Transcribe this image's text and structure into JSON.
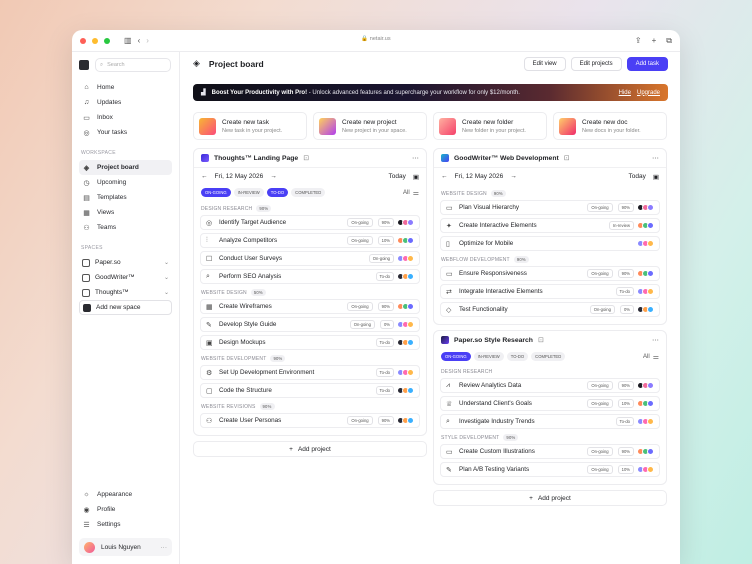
{
  "browser": {
    "url": "netair.us"
  },
  "sidebar": {
    "search_placeholder": "Search",
    "nav": [
      {
        "label": "Home",
        "icon": "home-icon"
      },
      {
        "label": "Updates",
        "icon": "bell-icon"
      },
      {
        "label": "Inbox",
        "icon": "inbox-icon"
      },
      {
        "label": "Your tasks",
        "icon": "check-circle-icon"
      }
    ],
    "workspace_heading": "WORKSPACE",
    "workspace": [
      {
        "label": "Project board",
        "icon": "layers-icon"
      },
      {
        "label": "Upcoming",
        "icon": "clock-icon"
      },
      {
        "label": "Templates",
        "icon": "template-icon"
      },
      {
        "label": "Views",
        "icon": "grid-icon"
      },
      {
        "label": "Teams",
        "icon": "users-icon"
      }
    ],
    "spaces_heading": "SPACES",
    "spaces": [
      {
        "label": "Paper.so"
      },
      {
        "label": "GoodWriter™"
      },
      {
        "label": "Thoughts™"
      }
    ],
    "add_space": "Add new space",
    "bottom": [
      {
        "label": "Appearance",
        "icon": "sun-icon"
      },
      {
        "label": "Profile",
        "icon": "user-icon"
      },
      {
        "label": "Settings",
        "icon": "sliders-icon"
      }
    ],
    "user_name": "Louis Nguyen"
  },
  "header": {
    "title": "Project board",
    "edit_view": "Edit view",
    "edit_projects": "Edit projects",
    "add_task": "Add task"
  },
  "promo": {
    "bold": "Boost Your Productivity with Pro!",
    "text": "- Unlock advanced features and supercharge your workflow for only $12/month.",
    "hide": "Hide",
    "upgrade": "Upgrade"
  },
  "quick_actions": [
    {
      "title": "Create new task",
      "sub": "New task in your project.",
      "grad": "linear-gradient(135deg,#f7b733,#fc4a7a)"
    },
    {
      "title": "Create new project",
      "sub": "New project in your space.",
      "grad": "linear-gradient(135deg,#ffd25a,#b13cf0)"
    },
    {
      "title": "Create new folder",
      "sub": "New folder in your project.",
      "grad": "linear-gradient(135deg,#ffb1a0,#f5406a)"
    },
    {
      "title": "Create new doc",
      "sub": "New docs in your folder.",
      "grad": "linear-gradient(135deg,#ffcf6a,#f02a6a)"
    }
  ],
  "left_card": {
    "title": "Thoughts™ Landing Page",
    "date": "Fri, 12 May 2026",
    "today": "Today",
    "filters": [
      "ON-GOING",
      "IN-REVIEW",
      "TO-DO",
      "COMPLETED"
    ],
    "all": "All",
    "sections": [
      {
        "name": "DESIGN RESEARCH",
        "pct": "90%",
        "tasks": [
          {
            "label": "Identify Target Audience",
            "status": "On-going",
            "pct": "90%",
            "icon": "target-icon"
          },
          {
            "label": "Analyze Competitors",
            "status": "On-going",
            "pct": "10%",
            "icon": "chart-icon"
          },
          {
            "label": "Conduct User Surveys",
            "status": "On-going",
            "pct": "",
            "icon": "survey-icon"
          },
          {
            "label": "Perform SEO Analysis",
            "status": "To-do",
            "pct": "",
            "icon": "search-icon"
          }
        ]
      },
      {
        "name": "WEBSITE DESIGN",
        "pct": "50%",
        "tasks": [
          {
            "label": "Create Wireframes",
            "status": "On-going",
            "pct": "90%",
            "icon": "wireframe-icon"
          },
          {
            "label": "Develop Style Guide",
            "status": "On-going",
            "pct": "0%",
            "icon": "brush-icon"
          },
          {
            "label": "Design Mockups",
            "status": "To-do",
            "pct": "",
            "icon": "image-icon"
          }
        ]
      },
      {
        "name": "WEBSITE DEVELOPMENT",
        "pct": "90%",
        "tasks": [
          {
            "label": "Set Up Development Environment",
            "status": "To-do",
            "pct": "",
            "icon": "settings-icon"
          },
          {
            "label": "Code the Structure",
            "status": "To-do",
            "pct": "",
            "icon": "code-icon"
          }
        ]
      },
      {
        "name": "WEBSITE REVISIONS",
        "pct": "90%",
        "tasks": [
          {
            "label": "Create User Personas",
            "status": "On-going",
            "pct": "90%",
            "icon": "persona-icon"
          }
        ]
      }
    ],
    "add_project": "Add project"
  },
  "right_card": {
    "title": "GoodWriter™ Web Development",
    "date": "Fri, 12 May 2026",
    "today": "Today",
    "sections": [
      {
        "name": "WEBSITE DESIGN",
        "pct": "90%",
        "tasks": [
          {
            "label": "Plan Visual Hierarchy",
            "status": "On-going",
            "pct": "90%",
            "icon": "hierarchy-icon"
          },
          {
            "label": "Create Interactive Elements",
            "status": "In-review",
            "pct": "",
            "icon": "sparkle-icon"
          },
          {
            "label": "Optimize for Mobile",
            "status": "",
            "pct": "",
            "icon": "mobile-icon"
          }
        ]
      },
      {
        "name": "WEBFLOW DEVELOPMENT",
        "pct": "90%",
        "tasks": [
          {
            "label": "Ensure Responsiveness",
            "status": "On-going",
            "pct": "90%",
            "icon": "monitor-icon"
          },
          {
            "label": "Integrate Interactive Elements",
            "status": "To-do",
            "pct": "",
            "icon": "plug-icon"
          },
          {
            "label": "Test Functionality",
            "status": "On-going",
            "pct": "0%",
            "icon": "test-icon"
          }
        ]
      }
    ]
  },
  "right_card2": {
    "title": "Paper.so Style Research",
    "filters": [
      "ON-GOING",
      "IN-REVIEW",
      "TO-DO",
      "COMPLETED"
    ],
    "all": "All",
    "sections": [
      {
        "name": "DESIGN RESEARCH",
        "pct": "",
        "tasks": [
          {
            "label": "Review Analytics Data",
            "status": "On-going",
            "pct": "90%",
            "icon": "analytics-icon"
          },
          {
            "label": "Understand Client's Goals",
            "status": "On-going",
            "pct": "10%",
            "icon": "trophy-icon"
          },
          {
            "label": "Investigate Industry Trends",
            "status": "To-do",
            "pct": "",
            "icon": "search-icon"
          }
        ]
      },
      {
        "name": "STYLE DEVELOPMENT",
        "pct": "90%",
        "tasks": [
          {
            "label": "Create Custom Illustrations",
            "status": "On-going",
            "pct": "90%",
            "icon": "illustration-icon"
          },
          {
            "label": "Plan A/B Testing Variants",
            "status": "On-going",
            "pct": "10%",
            "icon": "ab-test-icon"
          }
        ]
      }
    ],
    "add_project": "Add project"
  },
  "colors": {
    "accent": "#4a3ff5"
  }
}
